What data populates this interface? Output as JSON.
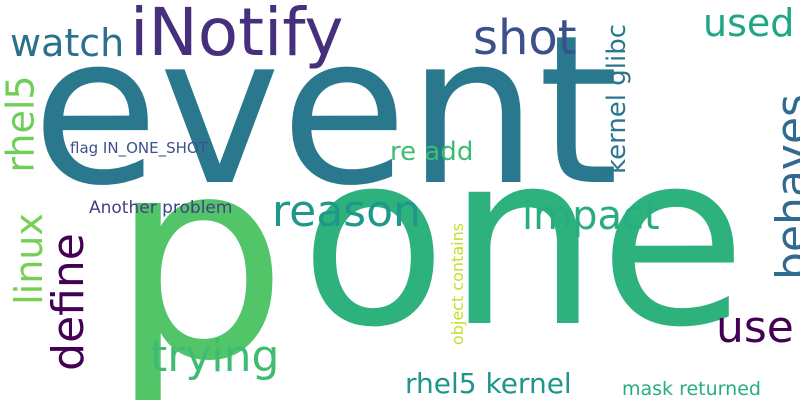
{
  "words": [
    {
      "text": "event",
      "color": "#2a788e"
    },
    {
      "text": "p",
      "color": "#52c569"
    },
    {
      "text": "one",
      "color": "#2db27d"
    },
    {
      "text": "iNotify",
      "color": "#46307e"
    },
    {
      "text": "shot",
      "color": "#3b518b"
    },
    {
      "text": "used",
      "color": "#21a685"
    },
    {
      "text": "watch",
      "color": "#2d708e"
    },
    {
      "text": "rhel5",
      "color": "#6ece58"
    },
    {
      "text": "reason",
      "color": "#1f988b"
    },
    {
      "text": "impact",
      "color": "#27ad81"
    },
    {
      "text": "behaves",
      "color": "#306a8e"
    },
    {
      "text": "re add",
      "color": "#3dbc74"
    },
    {
      "text": "kernel glibc",
      "color": "#2a768e"
    },
    {
      "text": "flag IN_ONE_SHOT",
      "color": "#3b528b"
    },
    {
      "text": "Another problem",
      "color": "#424086"
    },
    {
      "text": "linux",
      "color": "#75d054"
    },
    {
      "text": "define",
      "color": "#440154"
    },
    {
      "text": "trying",
      "color": "#3fbc73"
    },
    {
      "text": "use",
      "color": "#440154"
    },
    {
      "text": "object contains",
      "color": "#c2df23"
    },
    {
      "text": "rhel5 kernel",
      "color": "#1f958b"
    },
    {
      "text": "mask returned",
      "color": "#26ad81"
    }
  ]
}
